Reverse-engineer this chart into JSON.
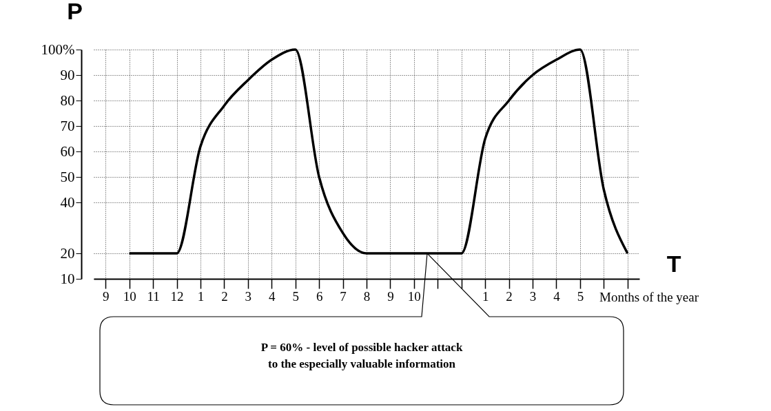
{
  "chart_data": {
    "type": "line",
    "ylabel": "P",
    "xlabel": "T",
    "categories": [
      "9",
      "10",
      "11",
      "12",
      "1",
      "2",
      "3",
      "4",
      "5",
      "6",
      "7",
      "8",
      "9",
      "10",
      null,
      null,
      "1",
      "2",
      "3",
      "4",
      "5",
      null,
      null
    ],
    "series": [
      {
        "color": "#000000",
        "values": [
          null,
          20,
          20,
          20,
          62,
          78,
          88,
          96,
          100,
          50,
          28,
          20,
          20,
          20,
          20,
          20,
          65,
          80,
          90,
          96,
          100,
          45,
          20
        ]
      }
    ],
    "ylim": [
      10,
      100
    ],
    "yticks": [
      10,
      20,
      40,
      50,
      60,
      70,
      80,
      90,
      {
        "value": 100,
        "label": "100%"
      }
    ],
    "grid": true,
    "line_style": "solid",
    "marker": "none",
    "annotations": [
      "Months of the year",
      "P = 60% - level of possible hacker attack\nto the especially valuable information"
    ]
  }
}
